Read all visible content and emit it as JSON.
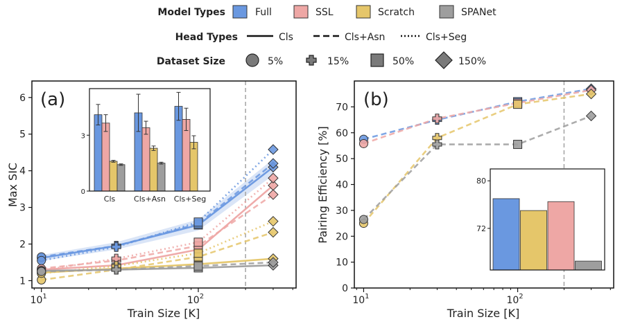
{
  "legend": {
    "model_types": {
      "title": "Model Types",
      "items": [
        {
          "label": "Full",
          "color": "#6a98e0"
        },
        {
          "label": "SSL",
          "color": "#eea7a5"
        },
        {
          "label": "Scratch",
          "color": "#e5c66a"
        },
        {
          "label": "SPANet",
          "color": "#9e9e9e"
        }
      ]
    },
    "head_types": {
      "title": "Head Types",
      "items": [
        {
          "label": "Cls",
          "dash": "solid"
        },
        {
          "label": "Cls+Asn",
          "dash": "dashed"
        },
        {
          "label": "Cls+Seg",
          "dash": "dotted"
        }
      ]
    },
    "dataset_size": {
      "title": "Dataset Size",
      "items": [
        {
          "label": "5%",
          "marker": "circle"
        },
        {
          "label": "15%",
          "marker": "plus"
        },
        {
          "label": "50%",
          "marker": "square"
        },
        {
          "label": "150%",
          "marker": "diamond"
        }
      ]
    }
  },
  "colors": {
    "Full": "#6a98e0",
    "SSL": "#eea7a5",
    "Scratch": "#e5c66a",
    "SPANet": "#9e9e9e",
    "vline": "#a8a8a8"
  },
  "chart_data": [
    {
      "panel": "(a)",
      "type": "line",
      "xscale": "log",
      "xlim": [
        8.7,
        420
      ],
      "ylim": [
        0.8,
        6.45
      ],
      "xlabel": "Train Size [K]",
      "ylabel": "Max SIC",
      "x_ticks": [
        {
          "value": 10,
          "base": "10",
          "exp": "1"
        },
        {
          "value": 100,
          "base": "10",
          "exp": "2"
        }
      ],
      "y_ticks": [
        1,
        2,
        3,
        4,
        5,
        6
      ],
      "vline_x": 200,
      "marker_sequence": [
        "circle",
        "plus",
        "square",
        "diamond"
      ],
      "series": [
        {
          "model": "Full",
          "head": "Cls",
          "x": [
            10,
            30,
            100,
            300
          ],
          "y": [
            1.62,
            1.95,
            2.52,
            4.1
          ],
          "band": [
            0.08,
            0.1,
            0.15,
            0.22
          ]
        },
        {
          "model": "Full",
          "head": "Cls+Asn",
          "x": [
            10,
            30,
            100,
            300
          ],
          "y": [
            1.65,
            1.95,
            2.55,
            4.2
          ]
        },
        {
          "model": "Full",
          "head": "Cls+Seg",
          "x": [
            10,
            30,
            100,
            300
          ],
          "y": [
            1.55,
            1.92,
            2.6,
            4.58
          ]
        },
        {
          "model": "SSL",
          "head": "Cls",
          "x": [
            10,
            30,
            100,
            300
          ],
          "y": [
            1.3,
            1.42,
            1.85,
            3.6
          ]
        },
        {
          "model": "SSL",
          "head": "Cls+Asn",
          "x": [
            10,
            30,
            100,
            300
          ],
          "y": [
            1.33,
            1.55,
            1.95,
            3.35
          ]
        },
        {
          "model": "SSL",
          "head": "Cls+Seg",
          "x": [
            10,
            30,
            100,
            300
          ],
          "y": [
            1.28,
            1.6,
            2.05,
            3.8
          ]
        },
        {
          "model": "Scratch",
          "head": "Cls",
          "x": [
            10,
            30,
            100,
            300
          ],
          "y": [
            1.22,
            1.33,
            1.45,
            1.6
          ]
        },
        {
          "model": "Scratch",
          "head": "Cls+Asn",
          "x": [
            10,
            30,
            100,
            300
          ],
          "y": [
            1.02,
            1.3,
            1.65,
            2.32
          ]
        },
        {
          "model": "Scratch",
          "head": "Cls+Seg",
          "x": [
            10,
            30,
            100,
            300
          ],
          "y": [
            1.2,
            1.4,
            1.75,
            2.62
          ]
        },
        {
          "model": "SPANet",
          "head": "Cls",
          "x": [
            10,
            30,
            100,
            300
          ],
          "y": [
            1.27,
            1.3,
            1.35,
            1.42
          ]
        },
        {
          "model": "SPANet",
          "head": "Cls+Asn",
          "x": [
            10,
            30,
            100,
            300
          ],
          "y": [
            1.25,
            1.3,
            1.4,
            1.5
          ]
        }
      ],
      "inset": {
        "type": "bar",
        "categories": [
          "Cls",
          "Cls+Asn",
          "Cls+Seg"
        ],
        "ylim": [
          0,
          5.5
        ],
        "y_ticks": [
          0,
          3
        ],
        "series": [
          {
            "name": "Full",
            "values": [
              4.1,
              4.2,
              4.55
            ],
            "errors": [
              0.55,
              1.0,
              0.75
            ]
          },
          {
            "name": "SSL",
            "values": [
              3.65,
              3.4,
              3.85
            ],
            "errors": [
              0.45,
              0.35,
              0.6
            ]
          },
          {
            "name": "Scratch",
            "values": [
              1.6,
              2.3,
              2.62
            ],
            "errors": [
              0.05,
              0.12,
              0.35
            ]
          },
          {
            "name": "SPANet",
            "values": [
              1.42,
              1.5,
              null
            ],
            "errors": [
              0.04,
              0.05,
              null
            ]
          }
        ]
      }
    },
    {
      "panel": "(b)",
      "type": "line",
      "xscale": "log",
      "xlim": [
        8.7,
        420
      ],
      "ylim": [
        0,
        80
      ],
      "xlabel": "Train Size [K]",
      "ylabel": "Pairing Efficiency [%]",
      "x_ticks": [
        {
          "value": 10,
          "base": "10",
          "exp": "1"
        },
        {
          "value": 100,
          "base": "10",
          "exp": "2"
        }
      ],
      "y_ticks": [
        0,
        10,
        20,
        30,
        40,
        50,
        60,
        70
      ],
      "vline_x": 200,
      "marker_sequence": [
        "circle",
        "plus",
        "square",
        "diamond"
      ],
      "series": [
        {
          "model": "Full",
          "head": "Cls+Asn",
          "x": [
            10,
            30,
            100,
            300
          ],
          "y": [
            57.5,
            65,
            72,
            77
          ]
        },
        {
          "model": "SSL",
          "head": "Cls+Asn",
          "x": [
            10,
            30,
            100,
            300
          ],
          "y": [
            55.8,
            65.5,
            71.5,
            76.5
          ]
        },
        {
          "model": "Scratch",
          "head": "Cls+Asn",
          "x": [
            10,
            30,
            100,
            300
          ],
          "y": [
            25,
            58,
            71,
            75
          ]
        },
        {
          "model": "SPANet",
          "head": "Cls+Asn",
          "x": [
            10,
            30,
            100,
            300
          ],
          "y": [
            26.5,
            55.5,
            55.5,
            66.5
          ]
        }
      ],
      "inset": {
        "type": "bar",
        "categories": [
          "Full",
          "Scratch",
          "SSL",
          "SPANet"
        ],
        "ylim": [
          65,
          82
        ],
        "y_ticks": [
          72,
          80
        ],
        "values": [
          77,
          75,
          76.5,
          66.5
        ]
      }
    }
  ]
}
